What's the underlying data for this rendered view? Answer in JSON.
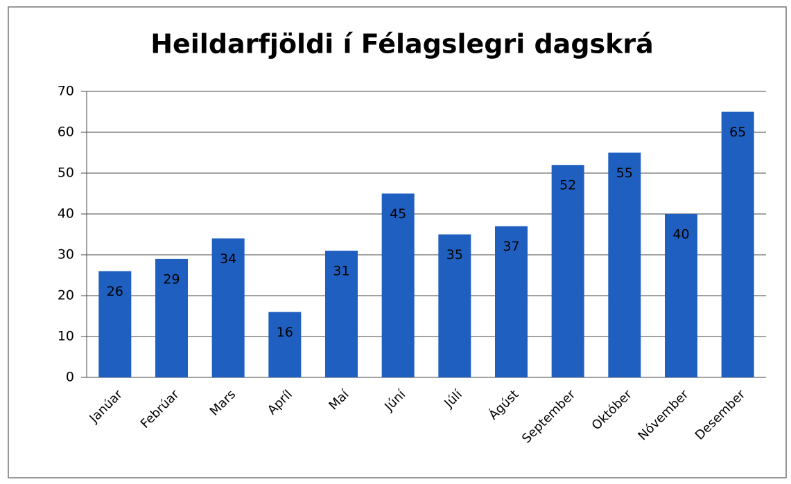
{
  "chart_data": {
    "type": "bar",
    "title": "Heildarfjöldi í Félagslegri dagskrá",
    "categories": [
      "Janúar",
      "Febrúar",
      "Mars",
      "Apríl",
      "Maí",
      "Júní",
      "Júlí",
      "Ágúst",
      "September",
      "Október",
      "Nóvember",
      "Desember"
    ],
    "values": [
      26,
      29,
      34,
      16,
      31,
      45,
      35,
      37,
      52,
      55,
      40,
      65
    ],
    "color": "#1f5fbf",
    "ylim": [
      0,
      70
    ],
    "yticks": [
      0,
      10,
      20,
      30,
      40,
      50,
      60,
      70
    ],
    "grid": true
  }
}
